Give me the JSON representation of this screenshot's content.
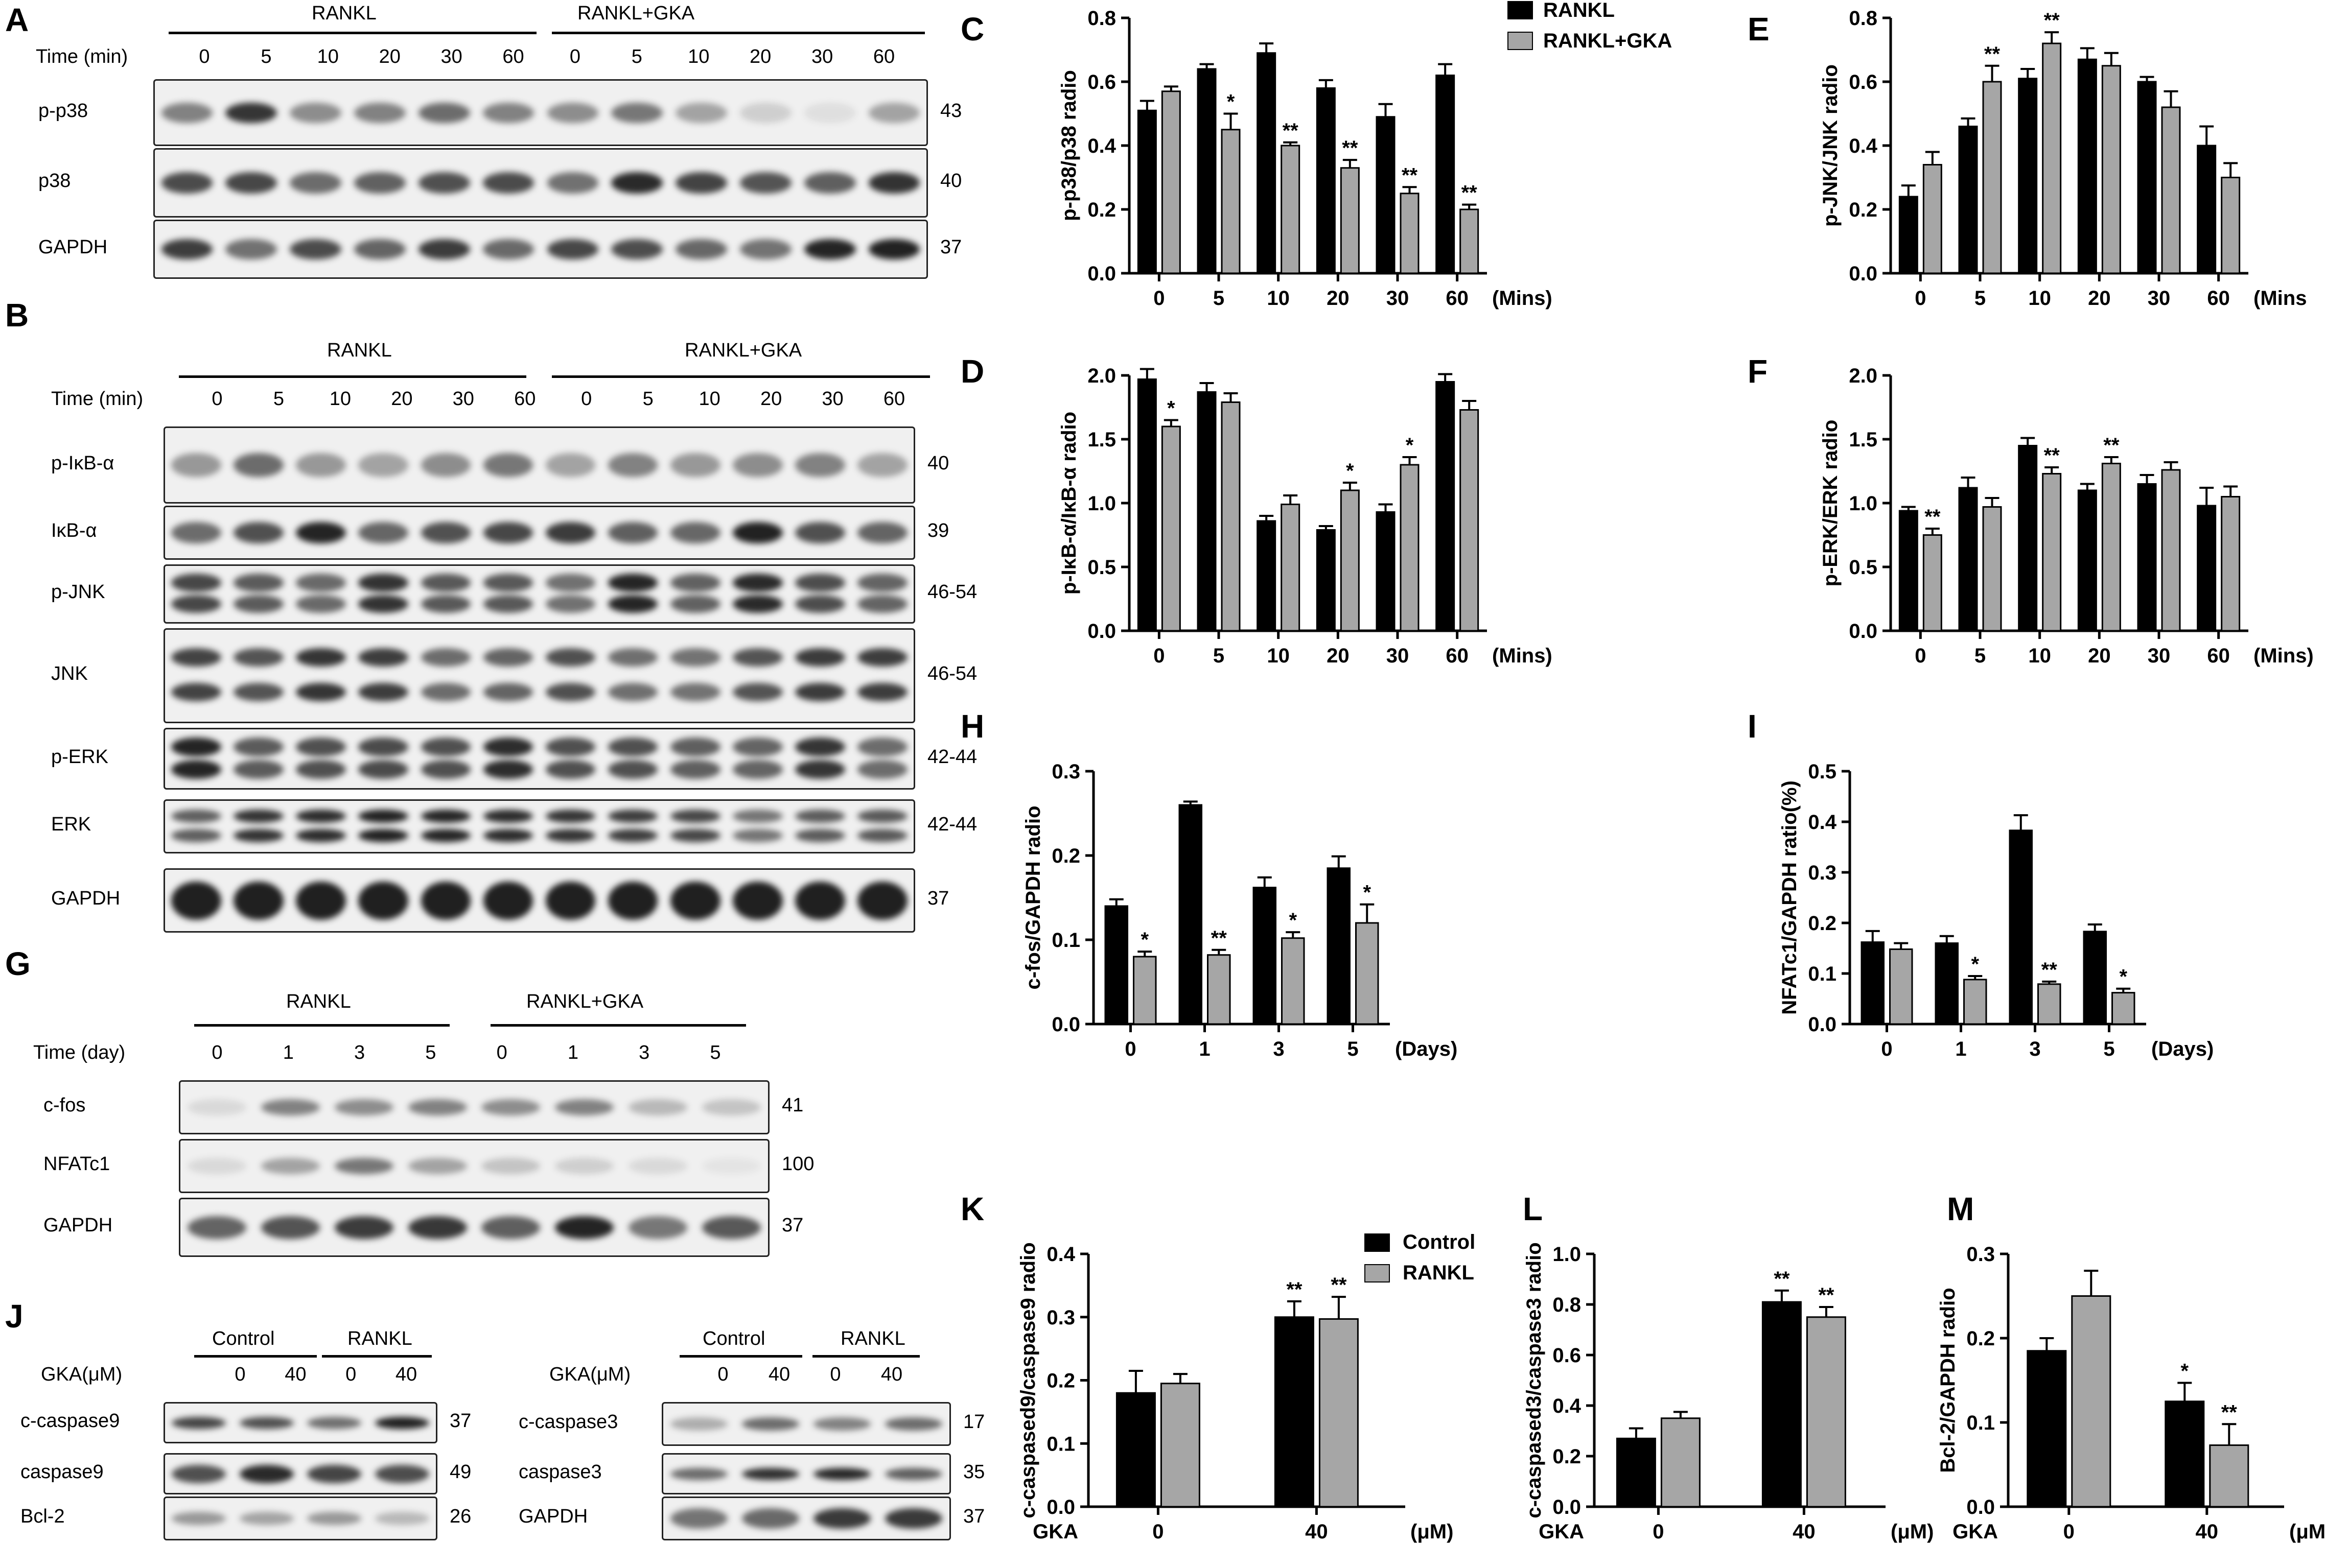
{
  "panel_letters": [
    "A",
    "B",
    "C",
    "D",
    "E",
    "F",
    "G",
    "H",
    "I",
    "J",
    "K",
    "L",
    "M"
  ],
  "colors": {
    "rankl": "#000000",
    "gka": "#a6a6a6",
    "axis": "#000000"
  },
  "legends": {
    "top": {
      "a": "RANKL",
      "b": "RANKL+GKA"
    },
    "apoptosis": {
      "a": "Control",
      "b": "RANKL"
    }
  },
  "blots": {
    "A": {
      "group1": "RANKL",
      "group2": "RANKL+GKA",
      "time_label": "Time (min)",
      "lanes": [
        "0",
        "5",
        "10",
        "20",
        "30",
        "60",
        "0",
        "5",
        "10",
        "20",
        "30",
        "60"
      ],
      "rows": [
        {
          "name": "p-p38",
          "kda": "43"
        },
        {
          "name": "p38",
          "kda": "40"
        },
        {
          "name": "GAPDH",
          "kda": "37"
        }
      ]
    },
    "B": {
      "group1": "RANKL",
      "group2": "RANKL+GKA",
      "time_label": "Time (min)",
      "lanes": [
        "0",
        "5",
        "10",
        "20",
        "30",
        "60",
        "0",
        "5",
        "10",
        "20",
        "30",
        "60"
      ],
      "rows": [
        {
          "name": "p-IκB-α",
          "kda": "40"
        },
        {
          "name": "IκB-α",
          "kda": "39"
        },
        {
          "name": "p-JNK",
          "kda": "46-54"
        },
        {
          "name": "JNK",
          "kda": "46-54"
        },
        {
          "name": "p-ERK",
          "kda": "42-44"
        },
        {
          "name": "ERK",
          "kda": "42-44"
        },
        {
          "name": "GAPDH",
          "kda": "37"
        }
      ]
    },
    "G": {
      "group1": "RANKL",
      "group2": "RANKL+GKA",
      "time_label": "Time (day)",
      "lanes": [
        "0",
        "1",
        "3",
        "5",
        "0",
        "1",
        "3",
        "5"
      ],
      "rows": [
        {
          "name": "c-fos",
          "kda": "41"
        },
        {
          "name": "NFATc1",
          "kda": "100"
        },
        {
          "name": "GAPDH",
          "kda": "37"
        }
      ]
    },
    "J1": {
      "group1": "Control",
      "group2": "RANKL",
      "gka_label": "GKA(μM)",
      "lanes": [
        "0",
        "40",
        "0",
        "40"
      ],
      "rows": [
        {
          "name": "c-caspase9",
          "kda": "37"
        },
        {
          "name": "caspase9",
          "kda": "49"
        },
        {
          "name": "Bcl-2",
          "kda": "26"
        }
      ]
    },
    "J2": {
      "group1": "Control",
      "group2": "RANKL",
      "gka_label": "GKA(μM)",
      "lanes": [
        "0",
        "40",
        "0",
        "40"
      ],
      "rows": [
        {
          "name": "c-caspase3",
          "kda": "17"
        },
        {
          "name": "caspase3",
          "kda": "35"
        },
        {
          "name": "GAPDH",
          "kda": "37"
        }
      ]
    }
  },
  "chart_data": [
    {
      "id": "C",
      "type": "bar",
      "ylabel": "p-p38/p38 radio",
      "xlabel": "(Mins)",
      "ylim": [
        0,
        0.8
      ],
      "yticks": [
        "0.0",
        "0.2",
        "0.4",
        "0.6",
        "0.8"
      ],
      "categories": [
        "0",
        "5",
        "10",
        "20",
        "30",
        "60"
      ],
      "series": [
        {
          "name": "RANKL",
          "values": [
            0.51,
            0.64,
            0.69,
            0.58,
            0.49,
            0.62
          ],
          "errors": [
            0.03,
            0.015,
            0.03,
            0.025,
            0.04,
            0.035
          ]
        },
        {
          "name": "RANKL+GKA",
          "values": [
            0.57,
            0.45,
            0.4,
            0.33,
            0.25,
            0.2
          ],
          "errors": [
            0.015,
            0.05,
            0.01,
            0.025,
            0.02,
            0.015
          ]
        }
      ],
      "annotations": [
        "",
        "*",
        "**",
        "**",
        "**",
        "**"
      ]
    },
    {
      "id": "E",
      "type": "bar",
      "ylabel": "p-JNK/JNK radio",
      "xlabel": "(Mins",
      "ylim": [
        0,
        0.8
      ],
      "yticks": [
        "0.0",
        "0.2",
        "0.4",
        "0.6",
        "0.8"
      ],
      "categories": [
        "0",
        "5",
        "10",
        "20",
        "30",
        "60"
      ],
      "series": [
        {
          "name": "RANKL",
          "values": [
            0.24,
            0.46,
            0.61,
            0.67,
            0.6,
            0.4
          ],
          "errors": [
            0.035,
            0.025,
            0.03,
            0.035,
            0.015,
            0.06
          ]
        },
        {
          "name": "RANKL+GKA",
          "values": [
            0.34,
            0.6,
            0.72,
            0.65,
            0.52,
            0.3
          ],
          "errors": [
            0.04,
            0.05,
            0.035,
            0.04,
            0.05,
            0.045
          ]
        }
      ],
      "annotations": [
        "",
        "**",
        "**",
        "",
        "",
        ""
      ]
    },
    {
      "id": "D",
      "type": "bar",
      "ylabel": "p-IκB-α/IκB-α radio",
      "xlabel": "(Mins)",
      "ylim": [
        0,
        2.0
      ],
      "yticks": [
        "0.0",
        "0.5",
        "1.0",
        "1.5",
        "2.0"
      ],
      "categories": [
        "0",
        "5",
        "10",
        "20",
        "30",
        "60"
      ],
      "series": [
        {
          "name": "RANKL",
          "values": [
            1.97,
            1.87,
            0.86,
            0.79,
            0.93,
            1.95
          ],
          "errors": [
            0.08,
            0.07,
            0.04,
            0.03,
            0.06,
            0.06
          ]
        },
        {
          "name": "RANKL+GKA",
          "values": [
            1.6,
            1.79,
            0.99,
            1.1,
            1.3,
            1.73
          ],
          "errors": [
            0.05,
            0.07,
            0.07,
            0.06,
            0.06,
            0.07
          ]
        }
      ],
      "annotations": [
        "*",
        "",
        "",
        "*",
        "*",
        ""
      ]
    },
    {
      "id": "F",
      "type": "bar",
      "ylabel": "p-ERK/ERK radio",
      "xlabel": "(Mins)",
      "ylim": [
        0,
        2.0
      ],
      "yticks": [
        "0.0",
        "0.5",
        "1.0",
        "1.5",
        "2.0"
      ],
      "categories": [
        "0",
        "5",
        "10",
        "20",
        "30",
        "60"
      ],
      "series": [
        {
          "name": "RANKL",
          "values": [
            0.94,
            1.12,
            1.45,
            1.1,
            1.15,
            0.98
          ],
          "errors": [
            0.03,
            0.08,
            0.06,
            0.05,
            0.07,
            0.14
          ]
        },
        {
          "name": "RANKL+GKA",
          "values": [
            0.75,
            0.97,
            1.23,
            1.31,
            1.26,
            1.05
          ],
          "errors": [
            0.05,
            0.07,
            0.05,
            0.05,
            0.06,
            0.08
          ]
        }
      ],
      "annotations": [
        "**",
        "",
        "**",
        "**",
        "",
        ""
      ]
    },
    {
      "id": "H",
      "type": "bar",
      "ylabel": "c-fos/GAPDH radio",
      "xlabel": "(Days)",
      "ylim": [
        0,
        0.3
      ],
      "yticks": [
        "0.0",
        "0.1",
        "0.2",
        "0.3"
      ],
      "categories": [
        "0",
        "1",
        "3",
        "5"
      ],
      "series": [
        {
          "name": "RANKL",
          "values": [
            0.14,
            0.26,
            0.162,
            0.185
          ],
          "errors": [
            0.008,
            0.004,
            0.012,
            0.014
          ]
        },
        {
          "name": "RANKL+GKA",
          "values": [
            0.08,
            0.082,
            0.102,
            0.12
          ],
          "errors": [
            0.006,
            0.006,
            0.007,
            0.022
          ]
        }
      ],
      "annotations": [
        "*",
        "**",
        "*",
        "*"
      ]
    },
    {
      "id": "I",
      "type": "bar",
      "ylabel": "NFATc1/GAPDH ratio(%)",
      "xlabel": "(Days)",
      "ylim": [
        0,
        0.5
      ],
      "yticks": [
        "0.0",
        "0.1",
        "0.2",
        "0.3",
        "0.4",
        "0.5"
      ],
      "categories": [
        "0",
        "1",
        "3",
        "5"
      ],
      "series": [
        {
          "name": "RANKL",
          "values": [
            0.162,
            0.16,
            0.383,
            0.183
          ],
          "errors": [
            0.022,
            0.014,
            0.03,
            0.014
          ]
        },
        {
          "name": "RANKL+GKA",
          "values": [
            0.148,
            0.088,
            0.079,
            0.062
          ],
          "errors": [
            0.012,
            0.007,
            0.005,
            0.008
          ]
        }
      ],
      "annotations": [
        "",
        "*",
        "**",
        "*"
      ]
    },
    {
      "id": "K",
      "type": "bar",
      "ylabel": "c-caspased9/caspase9 radio",
      "xlabel": "(μM)",
      "xprefix": "GKA",
      "ylim": [
        0,
        0.4
      ],
      "yticks": [
        "0.0",
        "0.1",
        "0.2",
        "0.3",
        "0.4"
      ],
      "categories": [
        "0",
        "40"
      ],
      "series": [
        {
          "name": "Control",
          "values": [
            0.18,
            0.3
          ],
          "errors": [
            0.035,
            0.025
          ]
        },
        {
          "name": "RANKL",
          "values": [
            0.195,
            0.297
          ],
          "errors": [
            0.015,
            0.035
          ]
        }
      ],
      "annotations": [
        "",
        "**"
      ],
      "annotations2": [
        "",
        "**"
      ]
    },
    {
      "id": "L",
      "type": "bar",
      "ylabel": "c-caspased3/caspase3 radio",
      "xlabel": "(μM)",
      "xprefix": "GKA",
      "ylim": [
        0,
        1.0
      ],
      "yticks": [
        "0.0",
        "0.2",
        "0.4",
        "0.6",
        "0.8",
        "1.0"
      ],
      "categories": [
        "0",
        "40"
      ],
      "series": [
        {
          "name": "Control",
          "values": [
            0.27,
            0.81
          ],
          "errors": [
            0.04,
            0.045
          ]
        },
        {
          "name": "RANKL",
          "values": [
            0.35,
            0.75
          ],
          "errors": [
            0.025,
            0.04
          ]
        }
      ],
      "annotations": [
        "",
        "**"
      ],
      "annotations2": [
        "",
        "**"
      ]
    },
    {
      "id": "M",
      "type": "bar",
      "ylabel": "Bcl-2/GAPDH radio",
      "xlabel": "(μM)",
      "xprefix": "GKA",
      "ylim": [
        0,
        0.3
      ],
      "yticks": [
        "0.0",
        "0.1",
        "0.2",
        "0.3"
      ],
      "categories": [
        "0",
        "40"
      ],
      "series": [
        {
          "name": "Control",
          "values": [
            0.185,
            0.125
          ],
          "errors": [
            0.015,
            0.022
          ]
        },
        {
          "name": "RANKL",
          "values": [
            0.25,
            0.073
          ],
          "errors": [
            0.03,
            0.025
          ]
        }
      ],
      "annotations": [
        "",
        "*"
      ],
      "annotations2": [
        "",
        "**"
      ]
    }
  ]
}
